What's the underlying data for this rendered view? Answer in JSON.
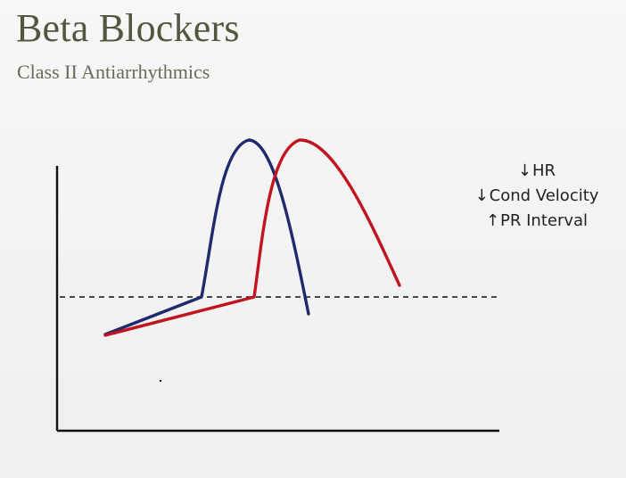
{
  "slide": {
    "title": "Beta Blockers",
    "subtitle": "Class II Antiarrhythmics"
  },
  "effects": [
    {
      "arrow": "↓",
      "label": "HR"
    },
    {
      "arrow": "↓",
      "label": "Cond Velocity"
    },
    {
      "arrow": "↑",
      "label": "PR Interval"
    }
  ],
  "colors": {
    "background": "#f4f4f4",
    "title": "#55563f",
    "subtitle": "#696a57",
    "normal_curve": "#202a6d",
    "beta_blocker_curve": "#c1141f",
    "axis": "#111111",
    "threshold_line": "#111111"
  }
}
